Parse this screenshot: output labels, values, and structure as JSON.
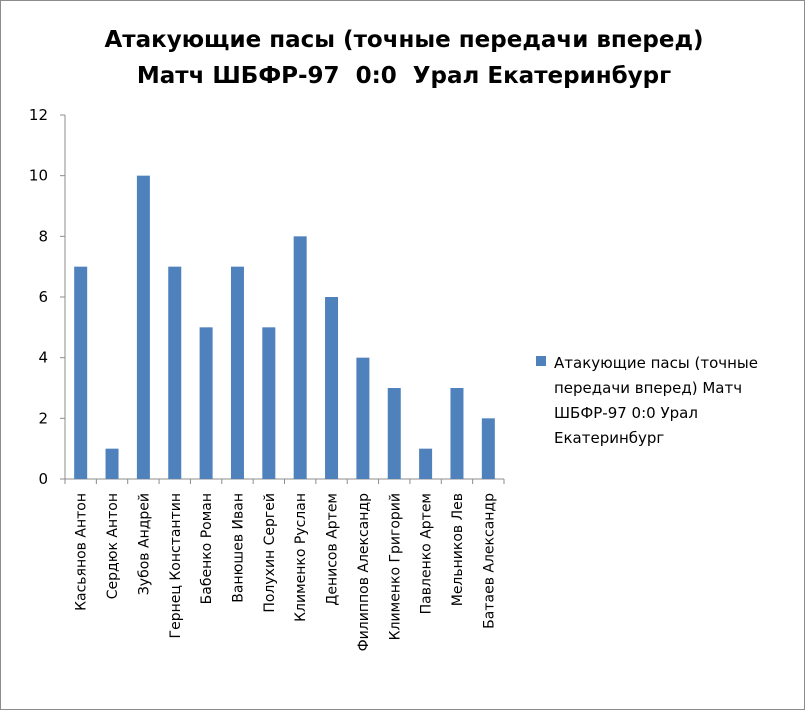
{
  "chart_data": {
    "type": "bar",
    "title": "Атакующие пасы (точные передачи вперед)",
    "subtitle": "Матч ШБФР-97  0:0  Урал Екатеринбург",
    "categories": [
      "Касьянов Антон",
      "Сердюк Антон",
      "Зубов Андрей",
      "Гернец Константин",
      "Бабенко Роман",
      "Ванюшев Иван",
      "Полухин Сергей",
      "Клименко Руслан",
      "Денисов Артем",
      "Филиппов Александр",
      "Клименко Григорий",
      "Павленко Артем",
      "Мельников Лев",
      "Батаев Александр"
    ],
    "series": [
      {
        "name": "Атакующие пасы (точные передачи вперед) Матч ШБФР-97  0:0  Урал Екатеринбург",
        "values": [
          7,
          1,
          10,
          7,
          5,
          7,
          5,
          8,
          6,
          4,
          3,
          1,
          3,
          2
        ],
        "color": "#4f81bd"
      }
    ],
    "ylim": [
      0,
      12
    ],
    "yticks": [
      0,
      2,
      4,
      6,
      8,
      10,
      12
    ],
    "grid": false,
    "legend_position": "right",
    "legend_lines": [
      "Атакующие пасы (точные",
      "передачи вперед) Матч",
      "ШБФР-97  0:0  Урал",
      "Екатеринбург"
    ]
  }
}
